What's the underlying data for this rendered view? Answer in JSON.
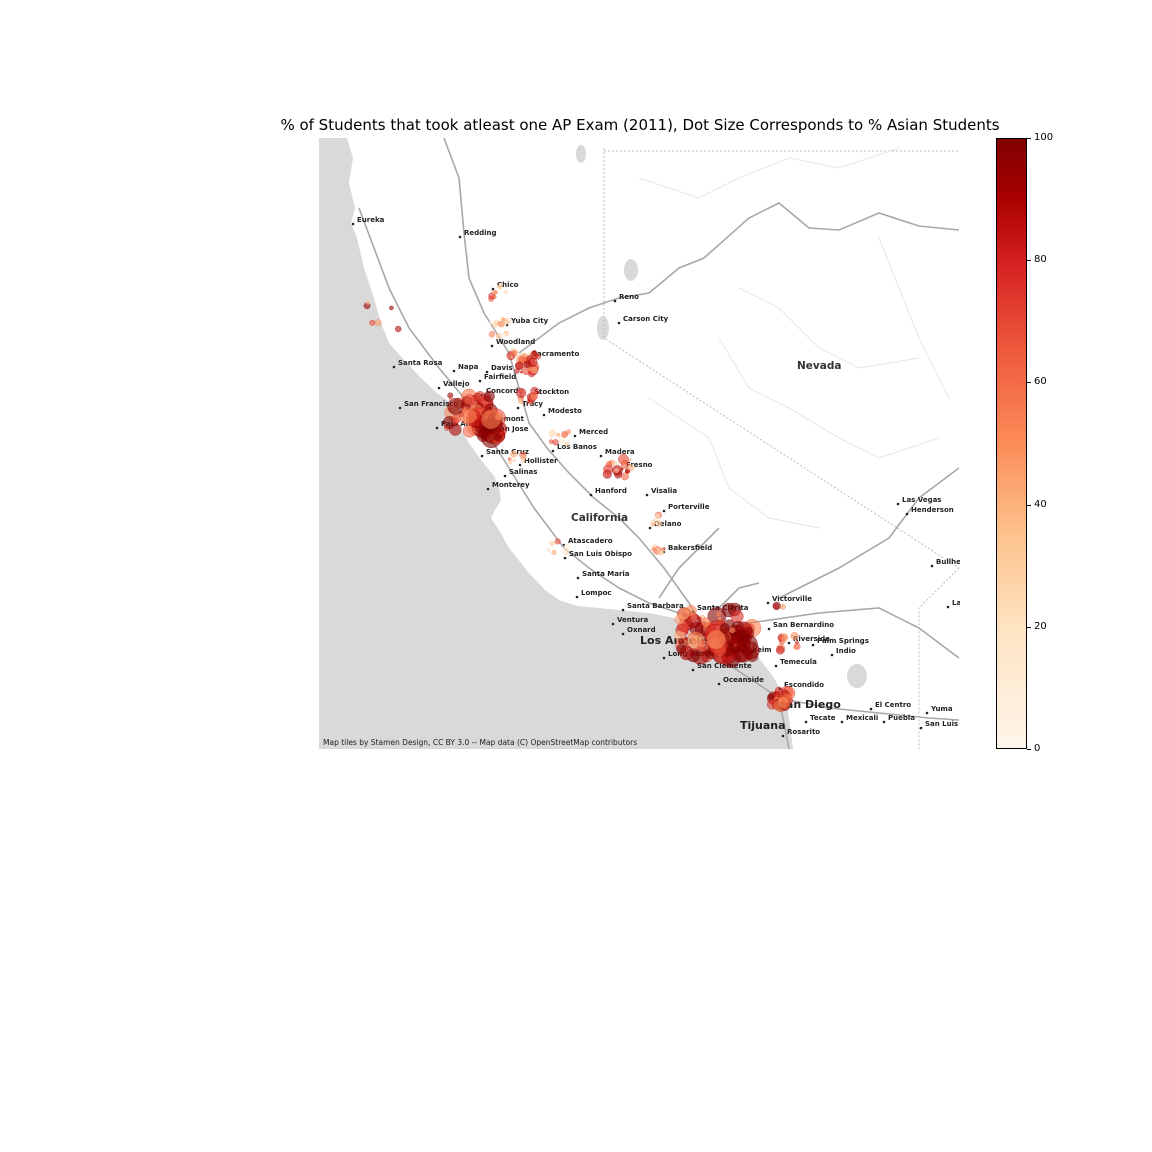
{
  "title": "% of Students that took atleast one AP Exam (2011), Dot Size Corresponds to % Asian Students",
  "attribution": "Map tiles by Stamen Design, CC BY 3.0 -- Map data (C) OpenStreetMap contributors",
  "colorbar": {
    "ticks": [
      "100",
      "80",
      "60",
      "40",
      "20",
      "0"
    ],
    "stops": [
      "#fff5eb",
      "#fdd49e",
      "#fdbb84",
      "#fc8d59",
      "#ef6548",
      "#d7301f",
      "#b30000",
      "#7f0000"
    ]
  },
  "map_labels": {
    "states": [
      "Nevada",
      "California"
    ],
    "cities": {
      "eureka": "Eureka",
      "redding": "Redding",
      "chico": "Chico",
      "reno": "Reno",
      "carson": "Carson City",
      "yuba": "Yuba City",
      "woodland": "Woodland",
      "sacramento": "Sacramento",
      "davis": "Davis",
      "santarosa": "Santa Rosa",
      "napa": "Napa",
      "fairfield": "Fairfield",
      "vallejo": "Vallejo",
      "concord": "Concord",
      "stockton": "Stockton",
      "sanfrancisco": "San Francisco",
      "tracy": "Tracy",
      "modesto": "Modesto",
      "fremont": "Fremont",
      "paloalto": "Palo Alto",
      "sanjose": "San Jose",
      "merced": "Merced",
      "losbanos": "Los Banos",
      "madera": "Madera",
      "santacruz": "Santa Cruz",
      "hollister": "Hollister",
      "fresno": "Fresno",
      "salinas": "Salinas",
      "monterey": "Monterey",
      "hanford": "Hanford",
      "visalia": "Visalia",
      "porterville": "Porterville",
      "delano": "Delano",
      "lasvegas": "Las Vegas",
      "henderson": "Henderson",
      "atascadero": "Atascadero",
      "sanluisobispo": "San Luis Obispo",
      "bakersfield": "Bakersfield",
      "bullhead": "Bullhead",
      "santamaria": "Santa Maria",
      "lompoc": "Lompoc",
      "victorville": "Victorville",
      "lakehavasu": "La",
      "santabarbara": "Santa Barbara",
      "santaclarita": "Santa Clarita",
      "ventura": "Ventura",
      "oxnard": "Oxnard",
      "sanbernardino": "San Bernardino",
      "losangeles": "Los Angeles",
      "riverside": "Riverside",
      "palmsprings": "Palm Springs",
      "anaheim": "Anaheim",
      "indio": "Indio",
      "longbeach": "Long Beach",
      "temecula": "Temecula",
      "sanclemente": "San Clemente",
      "oceanside": "Oceanside",
      "escondido": "Escondido",
      "elcentro": "El Centro",
      "yuma": "Yuma",
      "sandiego": "San Diego",
      "tecate": "Tecate",
      "mexicali": "Mexicali",
      "puebla": "Puebla",
      "sanluis": "San Luis R",
      "tijuana": "Tijuana",
      "rosarito": "Rosarito"
    }
  }
}
